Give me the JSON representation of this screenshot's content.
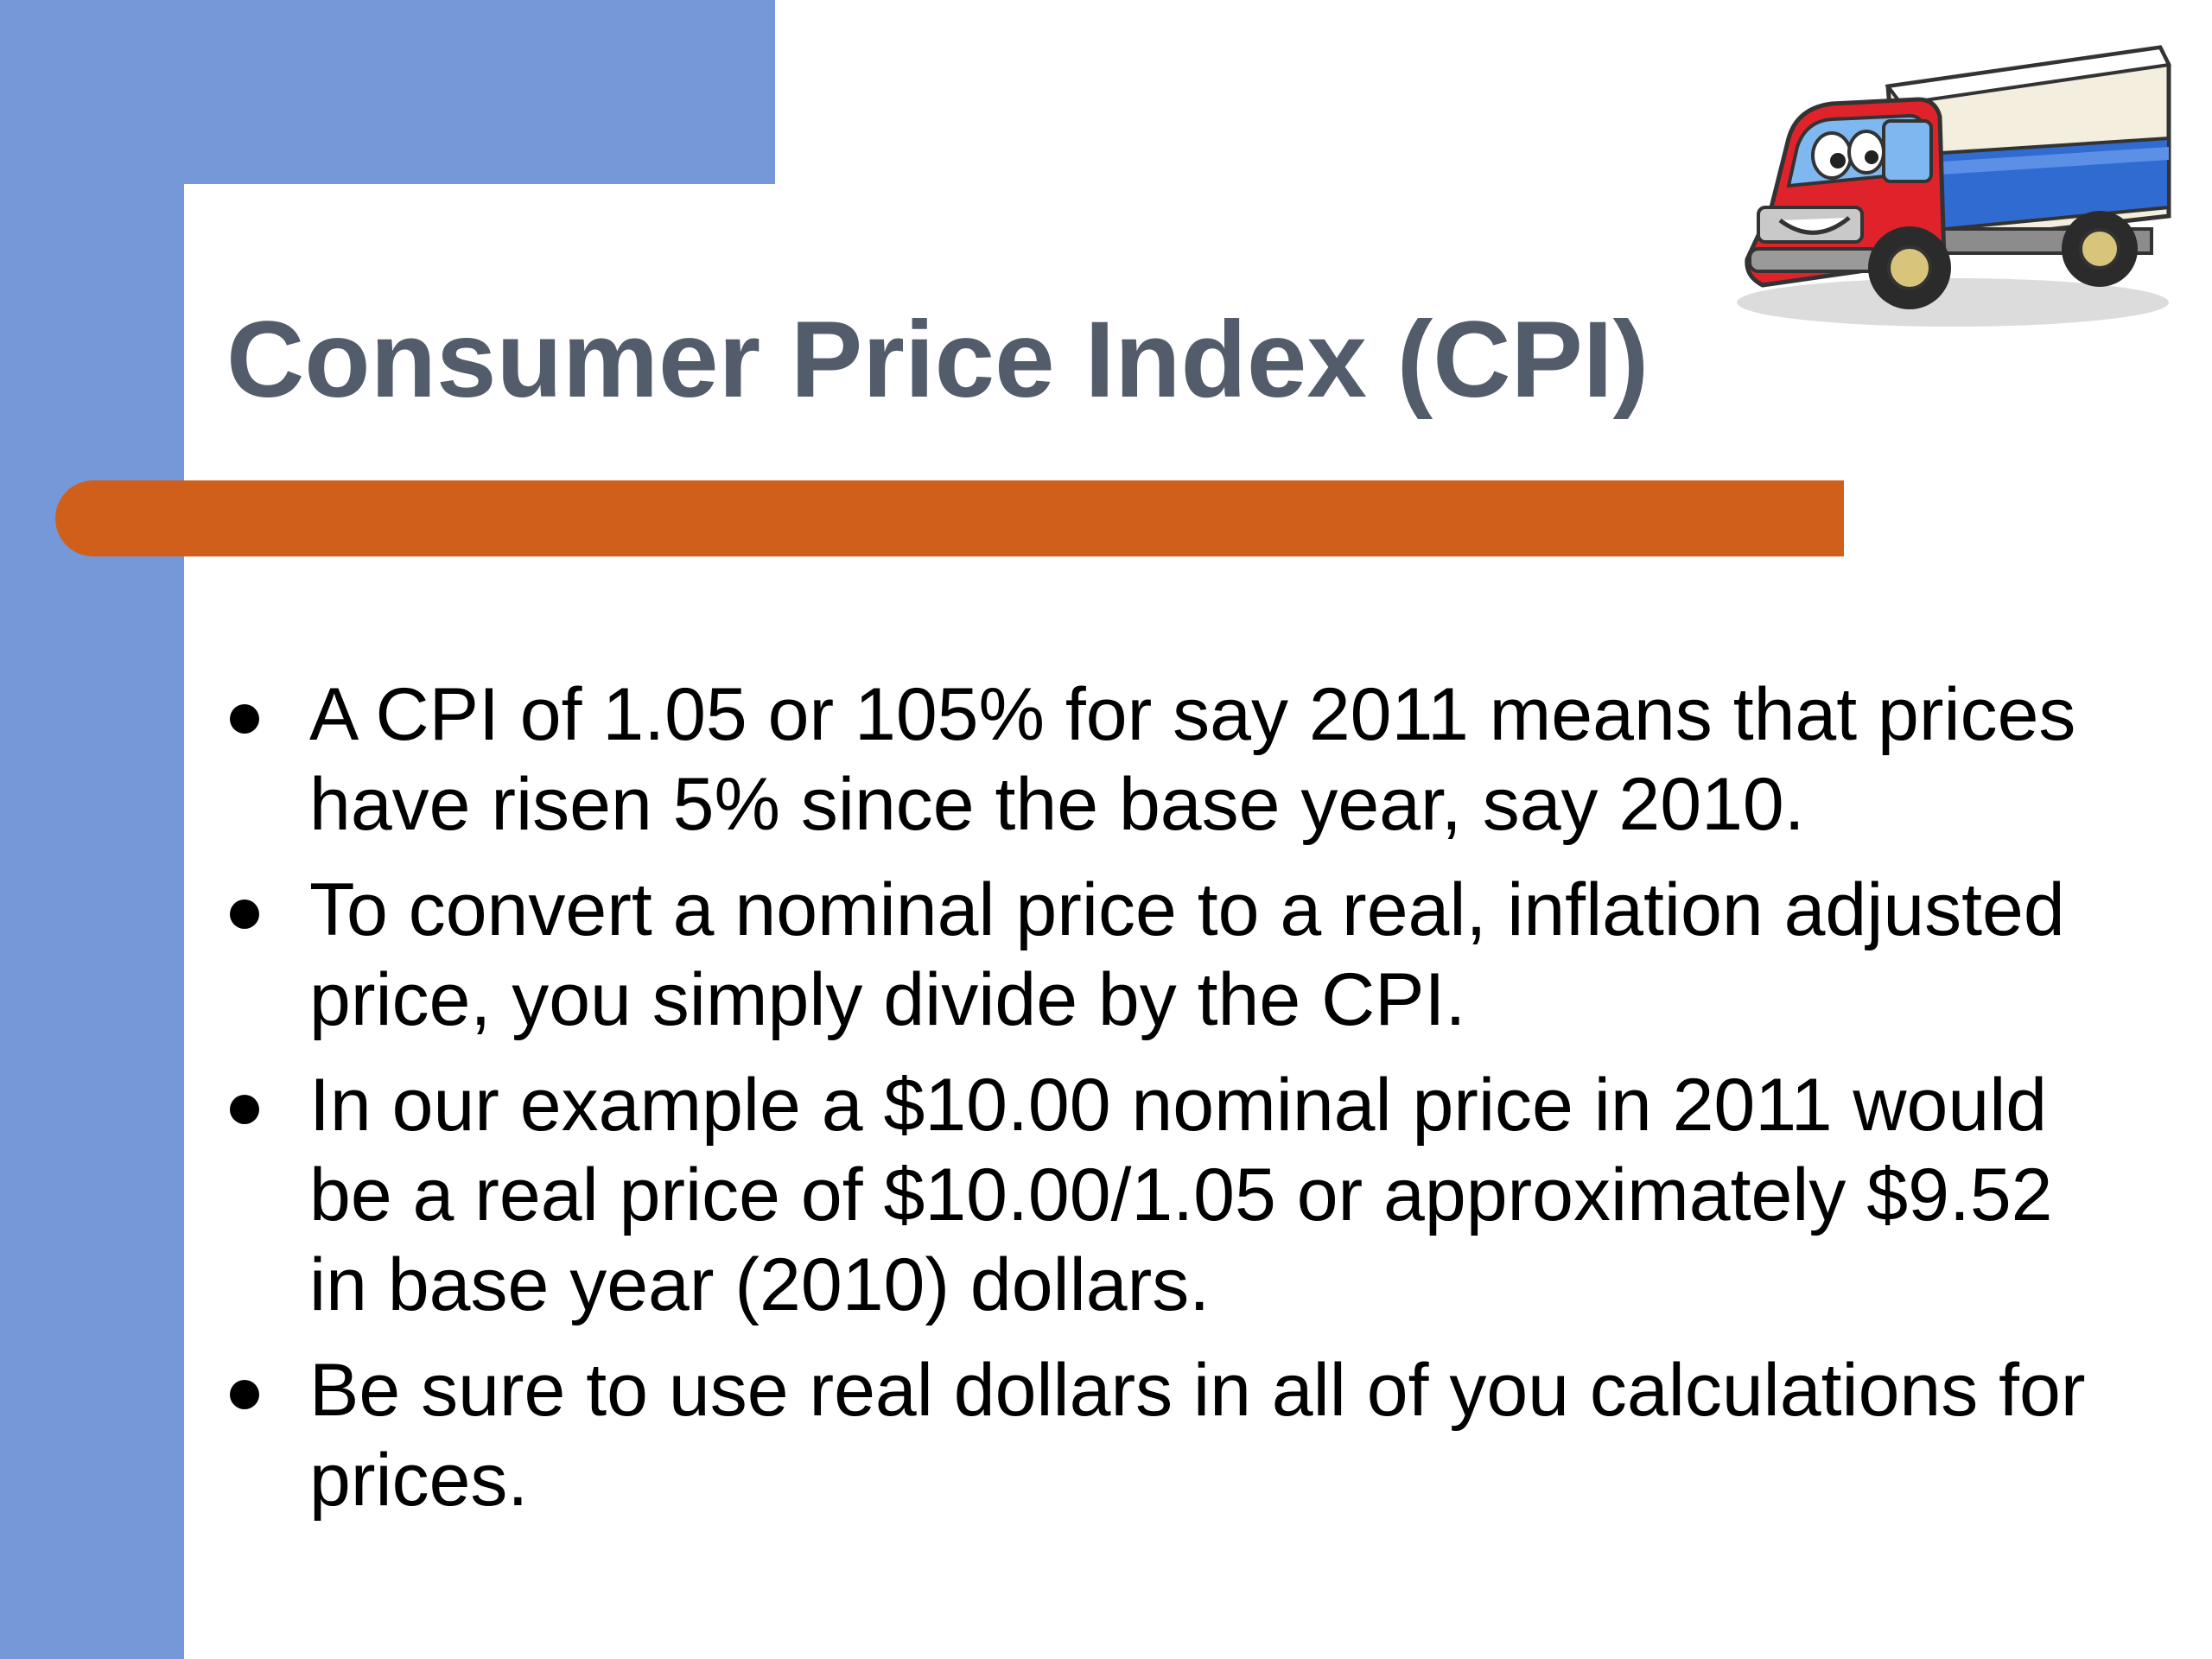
{
  "slide": {
    "title": "Consumer Price Index (CPI)",
    "bullets": [
      {
        "text": "A CPI of 1.05 or 105% for say 2011 means that prices have risen 5% since the base year, say 2010."
      },
      {
        "text": "To convert a nominal price to a real, inflation adjusted price, you simply divide by the CPI."
      },
      {
        "text": "In our example a $10.00 nominal price in 2011 would be a real price of $10.00/1.05 or approximately $9.52 in base year (2010) dollars."
      },
      {
        "text": "Be sure to use real dollars in all of you calculations for prices."
      }
    ],
    "illustration": "cartoon-truck-icon"
  },
  "colors": {
    "blue_band": "#7598D9",
    "accent_bar": "#D15F1C",
    "title_text": "#525C6B",
    "body_text": "#000000",
    "background": "#FFFFFF"
  }
}
